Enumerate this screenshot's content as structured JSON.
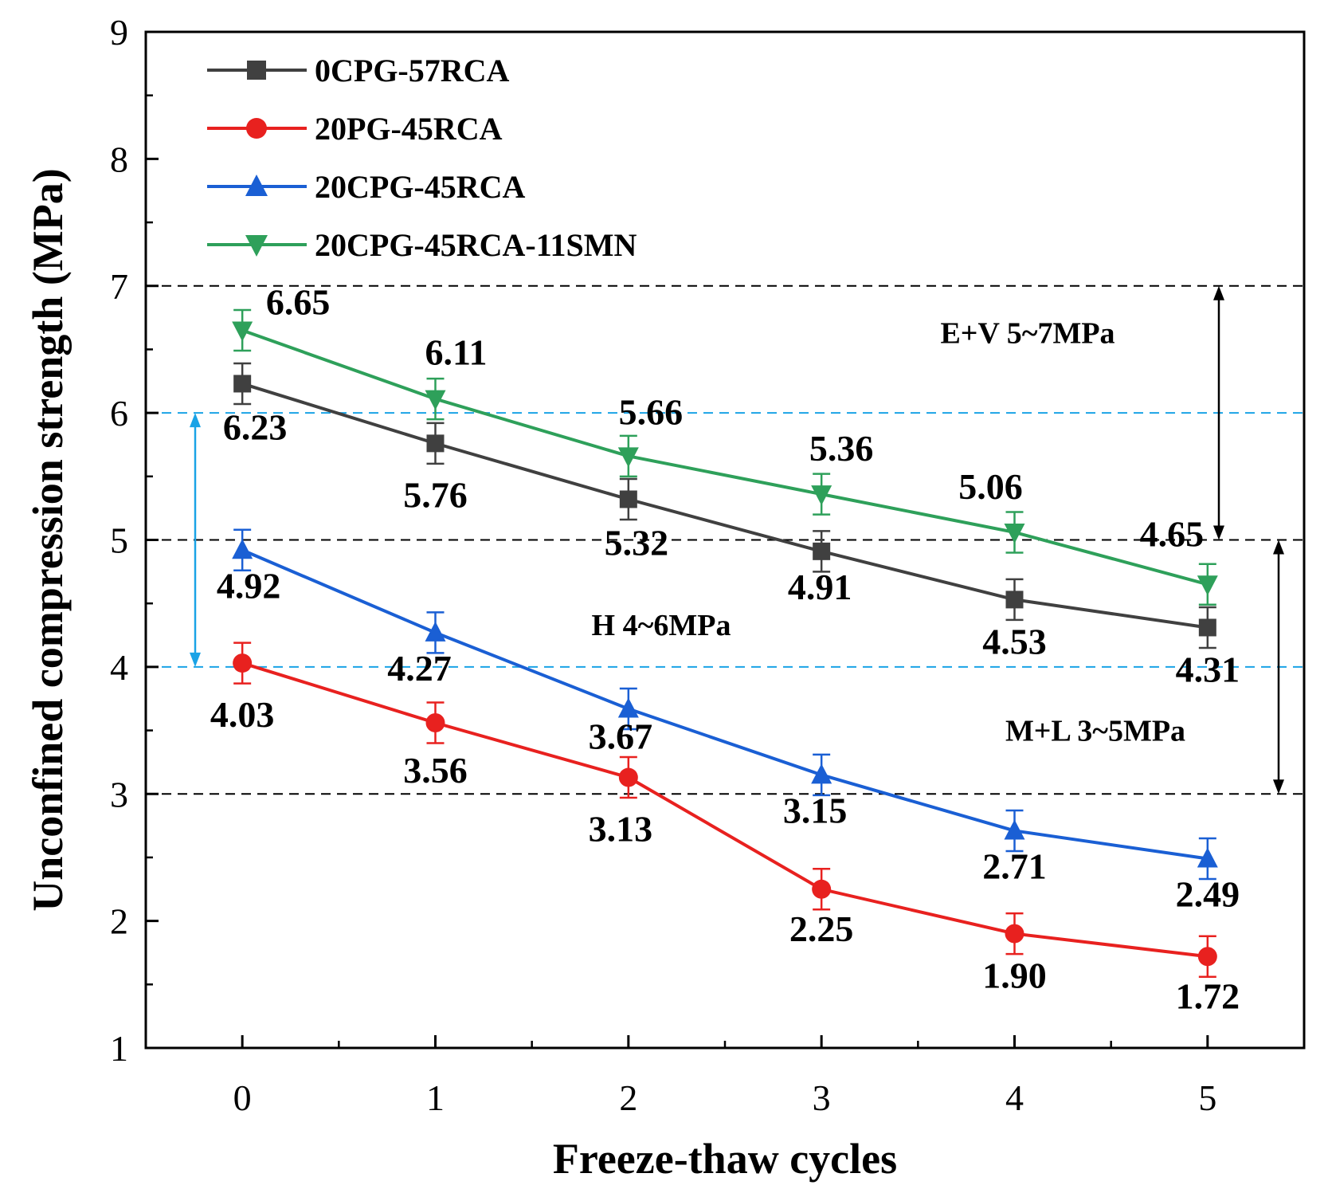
{
  "chart_data": {
    "type": "line",
    "title": "",
    "xlabel": "Freeze-thaw cycles",
    "ylabel": "Unconfined compression strength (MPa)",
    "x": [
      0,
      1,
      2,
      3,
      4,
      5
    ],
    "xlim": [
      -0.5,
      5.5
    ],
    "ylim": [
      1,
      9
    ],
    "xticks": [
      "0",
      "1",
      "2",
      "3",
      "4",
      "5"
    ],
    "yticks": [
      "1",
      "2",
      "3",
      "4",
      "5",
      "6",
      "7",
      "8",
      "9"
    ],
    "legend_position": "top-left",
    "series": [
      {
        "name": "0CPG-57RCA",
        "color": "#404040",
        "marker": "square",
        "values": [
          6.23,
          5.76,
          5.32,
          4.91,
          4.53,
          4.31
        ],
        "labels": [
          "6.23",
          "5.76",
          "5.32",
          "4.91",
          "4.53",
          "4.31"
        ],
        "error": 0.16
      },
      {
        "name": "20PG-45RCA",
        "color": "#e8211f",
        "marker": "circle",
        "values": [
          4.03,
          3.56,
          3.13,
          2.25,
          1.9,
          1.72
        ],
        "labels": [
          "4.03",
          "3.56",
          "3.13",
          "2.25",
          "1.90",
          "1.72"
        ],
        "error": 0.16
      },
      {
        "name": "20CPG-45RCA",
        "color": "#1a5fd4",
        "marker": "triangle-up",
        "values": [
          4.92,
          4.27,
          3.67,
          3.15,
          2.71,
          2.49
        ],
        "labels": [
          "4.92",
          "4.27",
          "3.67",
          "3.15",
          "2.71",
          "2.49"
        ],
        "error": 0.16
      },
      {
        "name": "20CPG-45RCA-11SMN",
        "color": "#2ea05a",
        "marker": "triangle-down",
        "values": [
          6.65,
          6.11,
          5.66,
          5.36,
          5.06,
          4.65
        ],
        "labels": [
          "6.65",
          "6.11",
          "5.66",
          "5.36",
          "5.06",
          "4.65"
        ],
        "error": 0.16
      }
    ],
    "reference_lines": [
      {
        "y": 7,
        "color": "#000000"
      },
      {
        "y": 6,
        "color": "#1aa3e6"
      },
      {
        "y": 5,
        "color": "#000000"
      },
      {
        "y": 4,
        "color": "#1aa3e6"
      },
      {
        "y": 3,
        "color": "#000000"
      }
    ],
    "ranges": [
      {
        "label": "E+V  5~7MPa",
        "from": 5,
        "to": 7,
        "color": "#000000"
      },
      {
        "label": "H  4~6MPa",
        "from": 4,
        "to": 6,
        "color": "#1aa3e6"
      },
      {
        "label": "M+L  3~5MPa",
        "from": 3,
        "to": 5,
        "color": "#000000"
      }
    ]
  }
}
